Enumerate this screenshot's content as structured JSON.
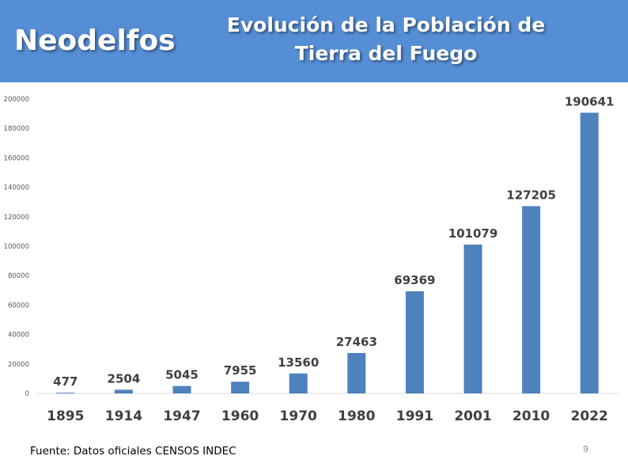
{
  "header": {
    "brand": "Neodelfos",
    "title_line1": "Evolución de la Población de",
    "title_line2": "Tierra del Fuego",
    "color": "#558ed5"
  },
  "chart_data": {
    "type": "bar",
    "categories": [
      "1895",
      "1914",
      "1947",
      "1960",
      "1970",
      "1980",
      "1991",
      "2001",
      "2010",
      "2022"
    ],
    "values": [
      477,
      2504,
      5045,
      7955,
      13560,
      27463,
      69369,
      101079,
      127205,
      190641
    ],
    "ylim": [
      0,
      200000
    ],
    "yticks": [
      0,
      20000,
      40000,
      60000,
      80000,
      100000,
      120000,
      140000,
      160000,
      180000,
      200000
    ],
    "bar_color": "#4f81bd",
    "grid": false,
    "data_labels": true
  },
  "footer": {
    "source": "Fuente: Datos oficiales CENSOS INDEC",
    "page_number": "9"
  }
}
